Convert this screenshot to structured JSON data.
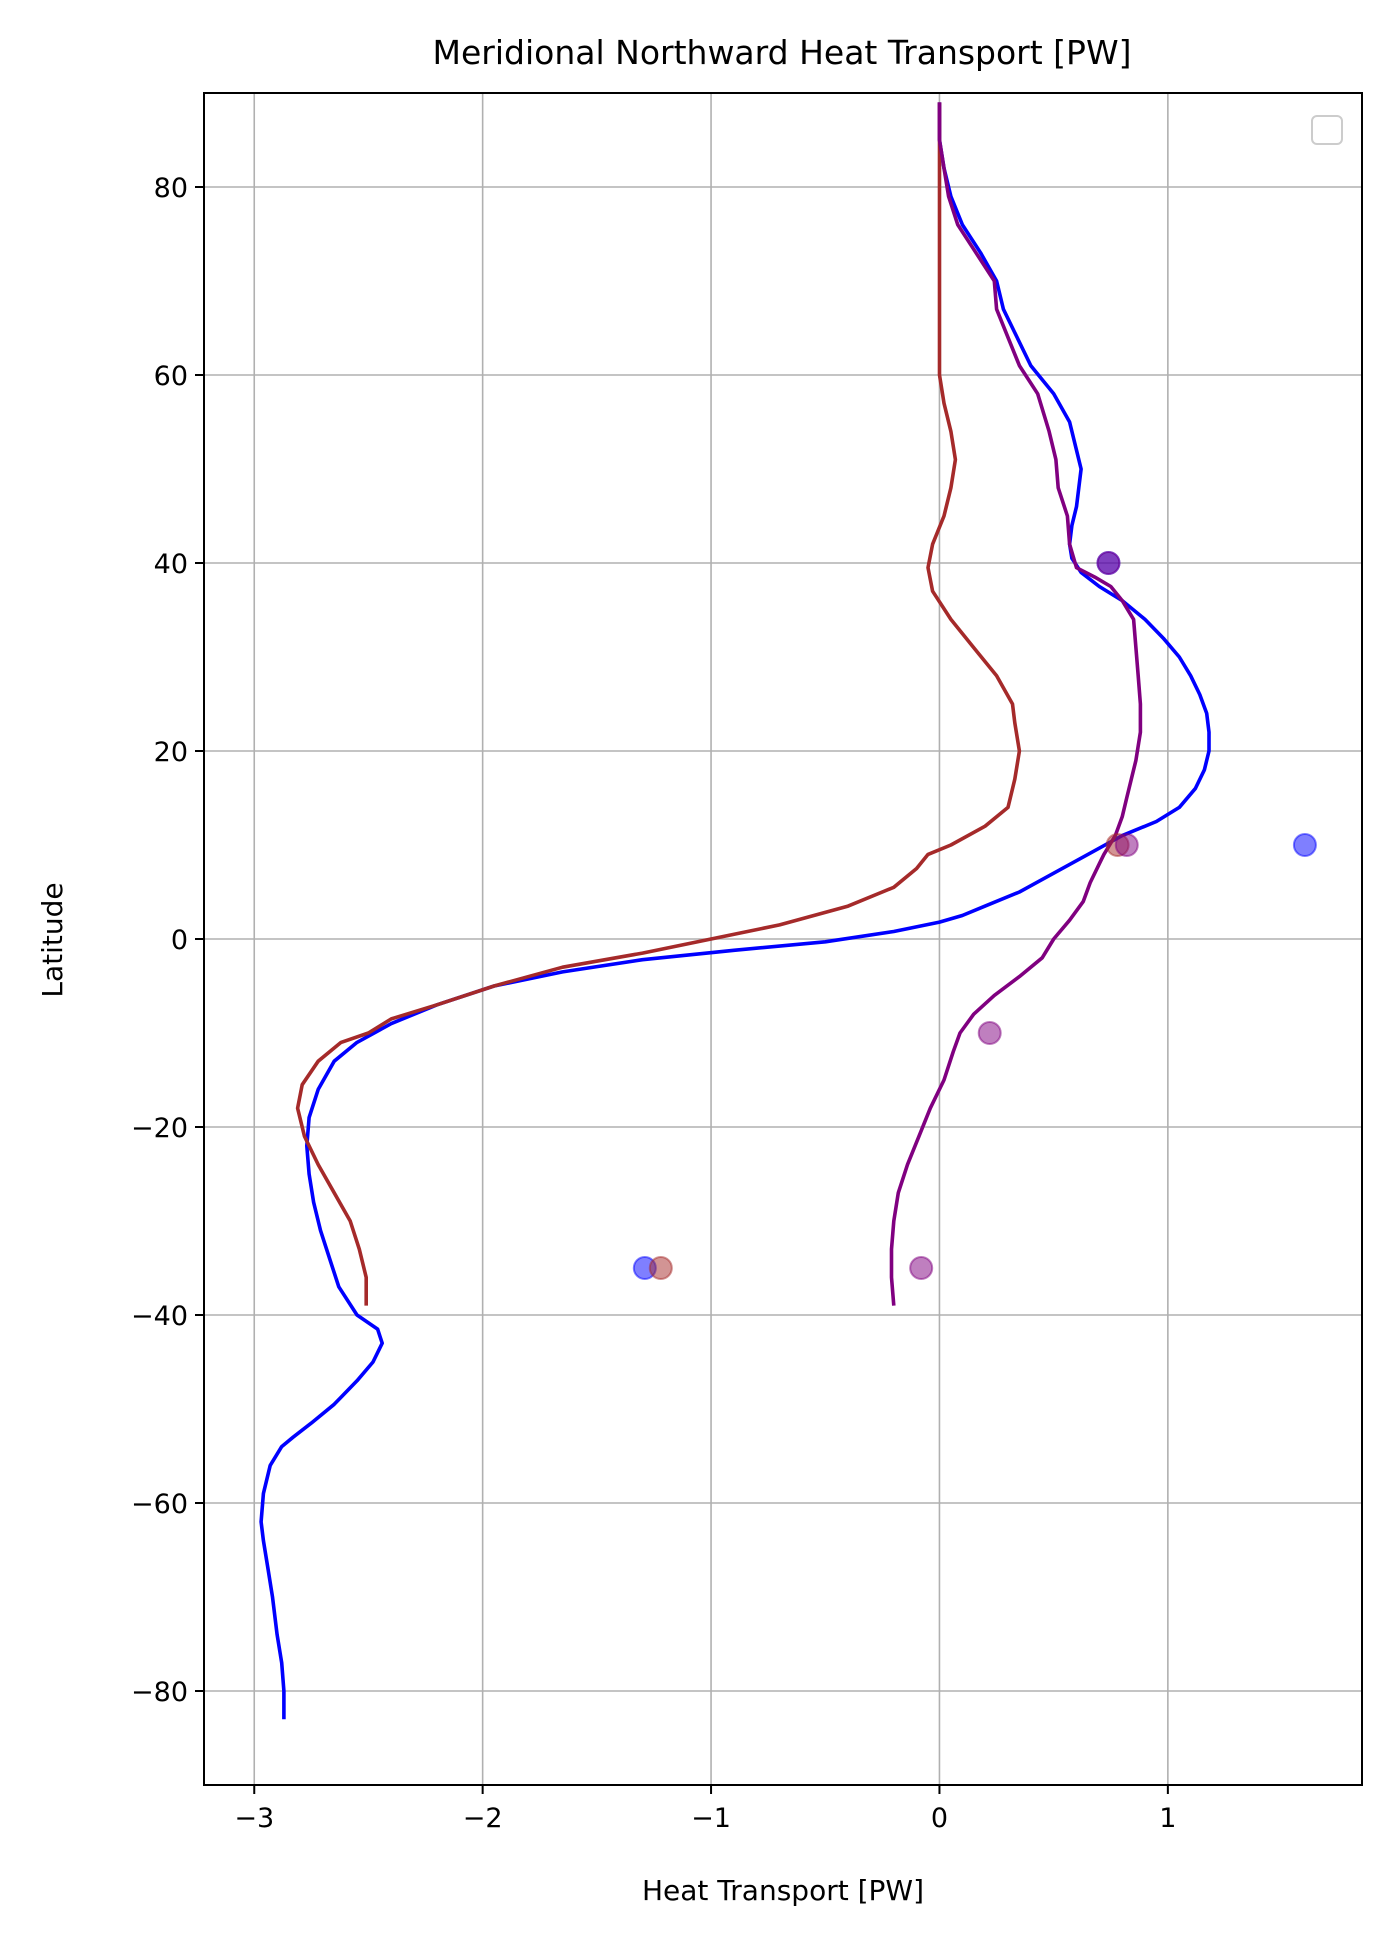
{
  "chart_data": {
    "type": "line",
    "title": "Meridional Northward Heat Transport [PW]",
    "xlabel": "Heat Transport [PW]",
    "ylabel": "Latitude",
    "xlim": [
      -3.22,
      1.85
    ],
    "ylim": [
      -90,
      90
    ],
    "xticks": [
      -3,
      -2,
      -1,
      0,
      1
    ],
    "xtick_labels": [
      "−3",
      "−2",
      "−1",
      "0",
      "1"
    ],
    "yticks": [
      -80,
      -60,
      -40,
      -20,
      0,
      20,
      40,
      60,
      80
    ],
    "ytick_labels": [
      "−80",
      "−60",
      "−40",
      "−20",
      "0",
      "20",
      "40",
      "60",
      "80"
    ],
    "grid": true,
    "legend": {
      "location": "top-right",
      "entries": []
    },
    "series": [
      {
        "color": "#0000ff",
        "points": [
          [
            -2.87,
            -83
          ],
          [
            -2.87,
            -80
          ],
          [
            -2.88,
            -77
          ],
          [
            -2.9,
            -74
          ],
          [
            -2.92,
            -70
          ],
          [
            -2.94,
            -67
          ],
          [
            -2.96,
            -64
          ],
          [
            -2.97,
            -62
          ],
          [
            -2.96,
            -59
          ],
          [
            -2.93,
            -56
          ],
          [
            -2.88,
            -54
          ],
          [
            -2.83,
            -53
          ],
          [
            -2.75,
            -51.5
          ],
          [
            -2.65,
            -49.5
          ],
          [
            -2.55,
            -47
          ],
          [
            -2.48,
            -45
          ],
          [
            -2.44,
            -43
          ],
          [
            -2.46,
            -41.5
          ],
          [
            -2.55,
            -40
          ],
          [
            -2.63,
            -37
          ],
          [
            -2.67,
            -34
          ],
          [
            -2.71,
            -31
          ],
          [
            -2.74,
            -28
          ],
          [
            -2.76,
            -25
          ],
          [
            -2.77,
            -22
          ],
          [
            -2.76,
            -19
          ],
          [
            -2.72,
            -16
          ],
          [
            -2.65,
            -13
          ],
          [
            -2.55,
            -11
          ],
          [
            -2.4,
            -9
          ],
          [
            -2.2,
            -7
          ],
          [
            -1.95,
            -5
          ],
          [
            -1.65,
            -3.5
          ],
          [
            -1.3,
            -2.2
          ],
          [
            -0.9,
            -1.2
          ],
          [
            -0.5,
            -0.3
          ],
          [
            -0.2,
            0.8
          ],
          [
            0.0,
            1.8
          ],
          [
            0.1,
            2.5
          ],
          [
            0.2,
            3.5
          ],
          [
            0.35,
            5
          ],
          [
            0.5,
            7
          ],
          [
            0.65,
            9
          ],
          [
            0.8,
            11
          ],
          [
            0.95,
            12.5
          ],
          [
            1.05,
            14
          ],
          [
            1.12,
            16
          ],
          [
            1.16,
            18
          ],
          [
            1.18,
            20
          ],
          [
            1.18,
            22
          ],
          [
            1.17,
            24
          ],
          [
            1.14,
            26
          ],
          [
            1.1,
            28
          ],
          [
            1.05,
            30
          ],
          [
            0.98,
            32
          ],
          [
            0.9,
            34
          ],
          [
            0.8,
            36
          ],
          [
            0.7,
            37.5
          ],
          [
            0.62,
            39
          ],
          [
            0.58,
            40.5
          ],
          [
            0.57,
            42
          ],
          [
            0.58,
            44
          ],
          [
            0.6,
            46
          ],
          [
            0.61,
            48
          ],
          [
            0.62,
            50
          ],
          [
            0.6,
            52
          ],
          [
            0.57,
            55
          ],
          [
            0.5,
            58
          ],
          [
            0.4,
            61
          ],
          [
            0.34,
            64
          ],
          [
            0.28,
            67
          ],
          [
            0.25,
            70
          ],
          [
            0.18,
            73
          ],
          [
            0.1,
            76
          ],
          [
            0.05,
            79
          ],
          [
            0.02,
            82
          ],
          [
            0.0,
            85
          ],
          [
            0.0,
            89
          ]
        ]
      },
      {
        "color": "#a52a2a",
        "points": [
          [
            -2.51,
            -39
          ],
          [
            -2.51,
            -36
          ],
          [
            -2.54,
            -33
          ],
          [
            -2.58,
            -30
          ],
          [
            -2.65,
            -27
          ],
          [
            -2.72,
            -24
          ],
          [
            -2.78,
            -21
          ],
          [
            -2.81,
            -18
          ],
          [
            -2.79,
            -15.5
          ],
          [
            -2.72,
            -13
          ],
          [
            -2.62,
            -11
          ],
          [
            -2.5,
            -10
          ],
          [
            -2.4,
            -8.5
          ],
          [
            -2.2,
            -7
          ],
          [
            -1.95,
            -5
          ],
          [
            -1.65,
            -3
          ],
          [
            -1.3,
            -1.5
          ],
          [
            -1.0,
            0
          ],
          [
            -0.7,
            1.5
          ],
          [
            -0.4,
            3.5
          ],
          [
            -0.2,
            5.5
          ],
          [
            -0.1,
            7.5
          ],
          [
            -0.05,
            9
          ],
          [
            0.05,
            10
          ],
          [
            0.2,
            12
          ],
          [
            0.3,
            14
          ],
          [
            0.33,
            17
          ],
          [
            0.35,
            20
          ],
          [
            0.33,
            23
          ],
          [
            0.32,
            25
          ],
          [
            0.25,
            28
          ],
          [
            0.15,
            31
          ],
          [
            0.05,
            34
          ],
          [
            -0.03,
            37
          ],
          [
            -0.05,
            39.5
          ],
          [
            -0.03,
            42
          ],
          [
            0.02,
            45
          ],
          [
            0.05,
            48
          ],
          [
            0.07,
            51
          ],
          [
            0.05,
            54
          ],
          [
            0.02,
            57
          ],
          [
            0.0,
            60
          ],
          [
            0.0,
            65
          ],
          [
            0.0,
            70
          ],
          [
            0.0,
            75
          ],
          [
            0.0,
            80
          ],
          [
            0.0,
            85
          ],
          [
            0.0,
            89
          ]
        ]
      },
      {
        "color": "#800080",
        "points": [
          [
            -0.2,
            -39
          ],
          [
            -0.21,
            -36
          ],
          [
            -0.21,
            -33
          ],
          [
            -0.2,
            -30
          ],
          [
            -0.18,
            -27
          ],
          [
            -0.14,
            -24
          ],
          [
            -0.09,
            -21
          ],
          [
            -0.04,
            -18
          ],
          [
            0.02,
            -15
          ],
          [
            0.06,
            -12
          ],
          [
            0.09,
            -10
          ],
          [
            0.15,
            -8
          ],
          [
            0.24,
            -6
          ],
          [
            0.35,
            -4
          ],
          [
            0.45,
            -2
          ],
          [
            0.5,
            0
          ],
          [
            0.57,
            2
          ],
          [
            0.63,
            4
          ],
          [
            0.66,
            6
          ],
          [
            0.7,
            8
          ],
          [
            0.72,
            9
          ],
          [
            0.77,
            11
          ],
          [
            0.8,
            13
          ],
          [
            0.82,
            15
          ],
          [
            0.84,
            17
          ],
          [
            0.86,
            19
          ],
          [
            0.88,
            22
          ],
          [
            0.88,
            25
          ],
          [
            0.87,
            28
          ],
          [
            0.86,
            31
          ],
          [
            0.85,
            34
          ],
          [
            0.8,
            36
          ],
          [
            0.75,
            37.5
          ],
          [
            0.68,
            38.5
          ],
          [
            0.6,
            39.5
          ],
          [
            0.57,
            42
          ],
          [
            0.56,
            45
          ],
          [
            0.52,
            48
          ],
          [
            0.51,
            51
          ],
          [
            0.48,
            54
          ],
          [
            0.43,
            58
          ],
          [
            0.35,
            61
          ],
          [
            0.3,
            64
          ],
          [
            0.25,
            67
          ],
          [
            0.24,
            70
          ],
          [
            0.16,
            73
          ],
          [
            0.08,
            76
          ],
          [
            0.04,
            79
          ],
          [
            0.02,
            82
          ],
          [
            0.0,
            85
          ],
          [
            0.0,
            89
          ]
        ]
      }
    ],
    "scatter_points": [
      {
        "x": -1.29,
        "y": -35,
        "color": "#0000ff"
      },
      {
        "x": -1.22,
        "y": -35,
        "color": "#a52a2a"
      },
      {
        "x": -0.08,
        "y": -35,
        "color": "#800080"
      },
      {
        "x": 0.22,
        "y": -10,
        "color": "#800080"
      },
      {
        "x": 0.78,
        "y": 10,
        "color": "#a52a2a"
      },
      {
        "x": 0.82,
        "y": 10,
        "color": "#800080"
      },
      {
        "x": 1.6,
        "y": 10,
        "color": "#0000ff"
      },
      {
        "x": 0.74,
        "y": 40,
        "color": "#0000ff"
      },
      {
        "x": 0.74,
        "y": 40,
        "color": "#800080"
      }
    ]
  }
}
